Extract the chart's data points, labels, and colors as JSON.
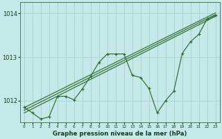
{
  "title": "Graphe pression niveau de la mer (hPa)",
  "background_color": "#c5e8e8",
  "grid_color": "#a8d4d4",
  "line_color": "#2d6e2d",
  "ylim": [
    1011.5,
    1014.25
  ],
  "yticks": [
    1012,
    1013,
    1014
  ],
  "x_ticks": [
    0,
    1,
    2,
    3,
    4,
    5,
    6,
    7,
    8,
    9,
    10,
    11,
    12,
    13,
    14,
    15,
    16,
    17,
    18,
    19,
    20,
    21,
    22,
    23
  ],
  "series_main": [
    1011.85,
    1011.72,
    1011.58,
    1011.63,
    1012.1,
    1012.1,
    1012.02,
    1012.27,
    1012.56,
    1012.88,
    1013.07,
    1013.07,
    1013.07,
    1012.58,
    1012.53,
    1012.28,
    1011.72,
    1012.0,
    1012.22,
    1013.08,
    1013.35,
    1013.52,
    1013.87,
    1013.95
  ],
  "lin1": [
    1011.72,
    1013.93
  ],
  "lin2": [
    1011.78,
    1013.97
  ],
  "lin3": [
    1011.84,
    1014.01
  ]
}
